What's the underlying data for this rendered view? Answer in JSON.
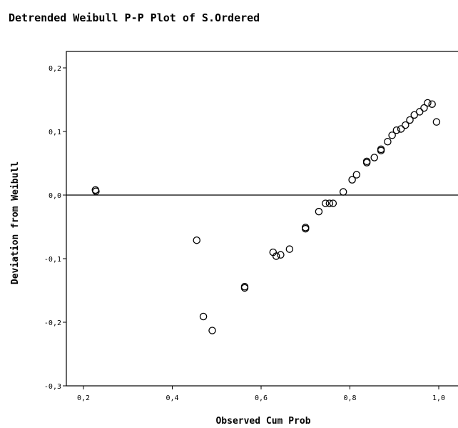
{
  "chart_data": {
    "type": "scatter",
    "title": "Detrended Weibull P-P Plot of S.Ordered",
    "xlabel": "Observed Cum Prob",
    "ylabel": "Deviation from Weibull",
    "xlim": [
      0.2,
      1.0
    ],
    "ylim": [
      -0.3,
      0.2
    ],
    "x_ticks": [
      0.2,
      0.4,
      0.6,
      0.8,
      1.0
    ],
    "x_tick_labels": [
      "0,2",
      "0,4",
      "0,6",
      "0,8",
      "1,0"
    ],
    "y_ticks": [
      0.2,
      0.1,
      0.0,
      -0.1,
      -0.2,
      -0.3
    ],
    "y_tick_labels": [
      "0,2",
      "0,1",
      "0,0",
      "-0,1",
      "-0,2",
      "-0,3"
    ],
    "reference_line_y": 0.0,
    "grid": false,
    "marker": "open-circle",
    "marker_color": "#000000",
    "points": [
      {
        "x": 0.227,
        "y": 0.008
      },
      {
        "x": 0.228,
        "y": 0.006
      },
      {
        "x": 0.455,
        "y": -0.071
      },
      {
        "x": 0.47,
        "y": -0.191
      },
      {
        "x": 0.49,
        "y": -0.213
      },
      {
        "x": 0.563,
        "y": -0.146
      },
      {
        "x": 0.563,
        "y": -0.144
      },
      {
        "x": 0.627,
        "y": -0.09
      },
      {
        "x": 0.634,
        "y": -0.096
      },
      {
        "x": 0.644,
        "y": -0.094
      },
      {
        "x": 0.664,
        "y": -0.085
      },
      {
        "x": 0.7,
        "y": -0.053
      },
      {
        "x": 0.7,
        "y": -0.051
      },
      {
        "x": 0.73,
        "y": -0.026
      },
      {
        "x": 0.745,
        "y": -0.013
      },
      {
        "x": 0.754,
        "y": -0.013
      },
      {
        "x": 0.762,
        "y": -0.013
      },
      {
        "x": 0.785,
        "y": 0.005
      },
      {
        "x": 0.805,
        "y": 0.024
      },
      {
        "x": 0.815,
        "y": 0.032
      },
      {
        "x": 0.838,
        "y": 0.051
      },
      {
        "x": 0.838,
        "y": 0.053
      },
      {
        "x": 0.855,
        "y": 0.059
      },
      {
        "x": 0.87,
        "y": 0.07
      },
      {
        "x": 0.87,
        "y": 0.072
      },
      {
        "x": 0.885,
        "y": 0.084
      },
      {
        "x": 0.895,
        "y": 0.094
      },
      {
        "x": 0.905,
        "y": 0.102
      },
      {
        "x": 0.915,
        "y": 0.104
      },
      {
        "x": 0.925,
        "y": 0.11
      },
      {
        "x": 0.935,
        "y": 0.118
      },
      {
        "x": 0.945,
        "y": 0.126
      },
      {
        "x": 0.957,
        "y": 0.131
      },
      {
        "x": 0.967,
        "y": 0.137
      },
      {
        "x": 0.975,
        "y": 0.145
      },
      {
        "x": 0.985,
        "y": 0.143
      },
      {
        "x": 0.995,
        "y": 0.115
      }
    ]
  }
}
